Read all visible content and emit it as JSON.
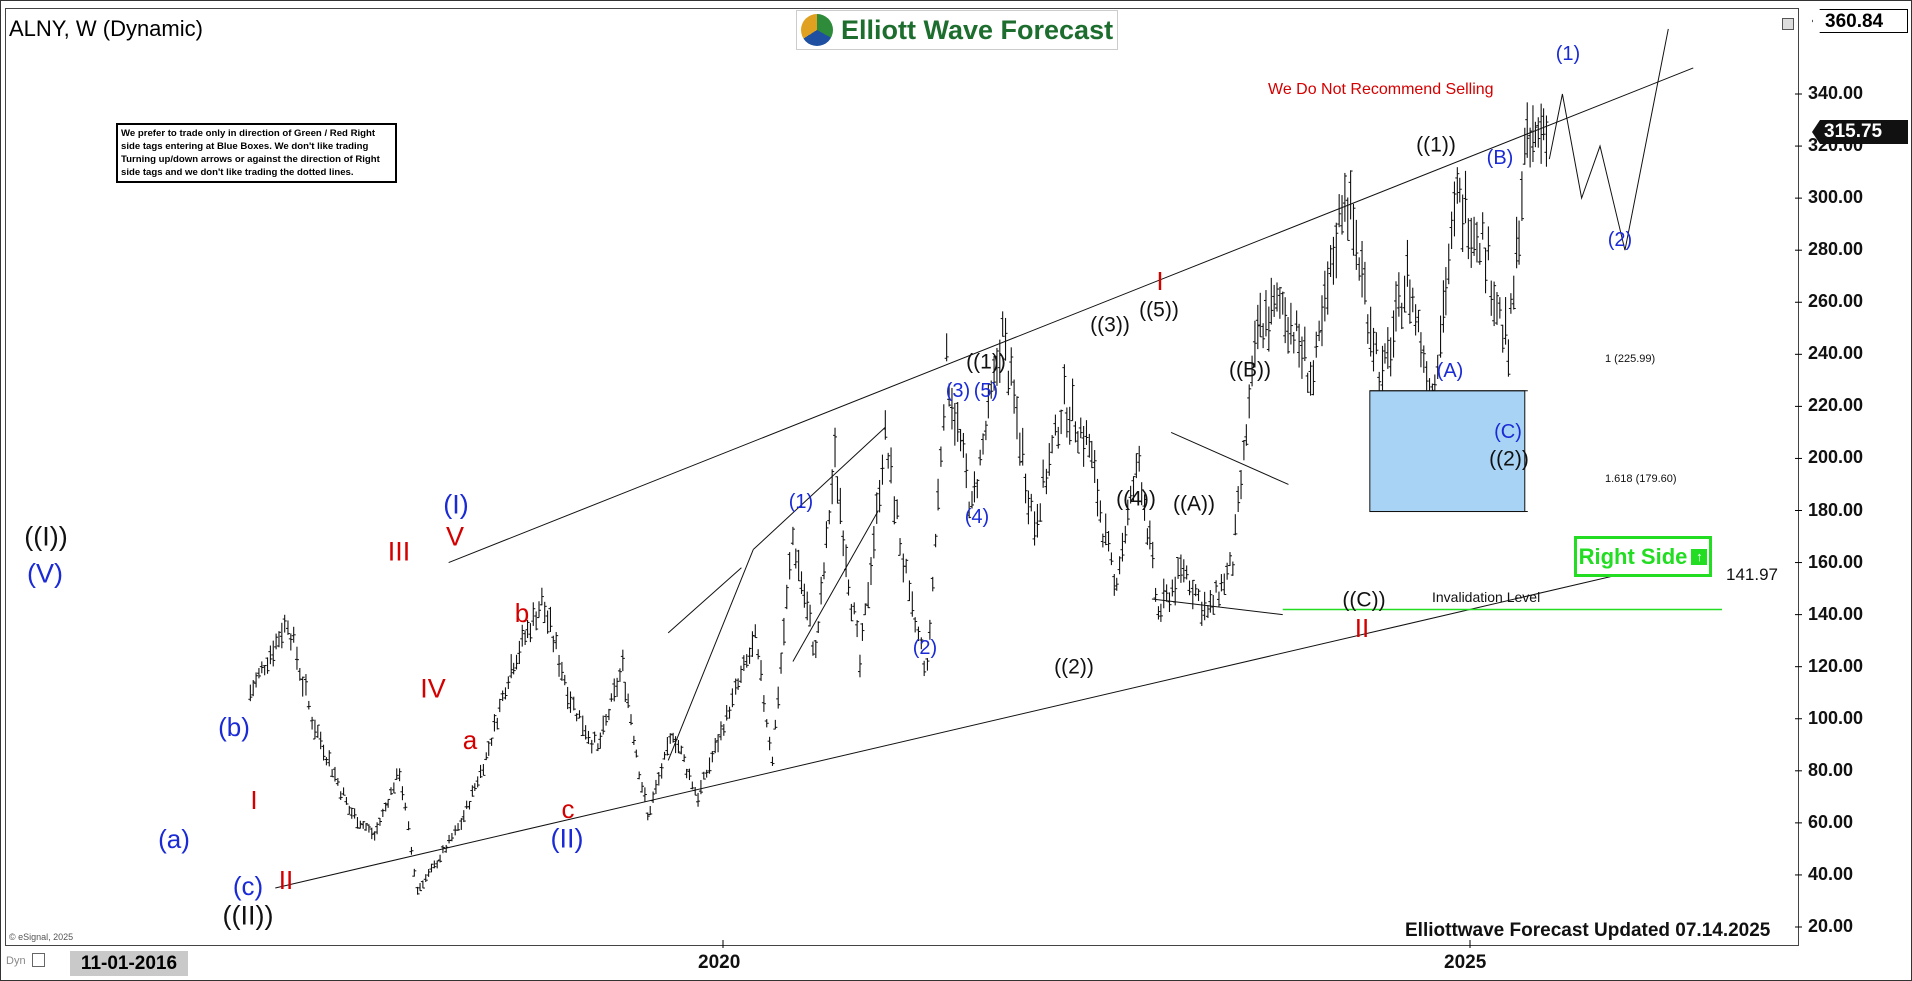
{
  "header": {
    "symbol_title": "ALNY, W (Dynamic)",
    "logo_text": "Elliott Wave Forecast",
    "disclaimer": "We prefer to trade only in direction of Green / Red Right side tags entering at Blue Boxes. We don't like trading Turning up/down arrows or against the direction of Right side tags and we don't like trading the dotted lines.",
    "warning": "We Do Not Recommend Selling"
  },
  "price_axis": {
    "ticks": [
      "340.00",
      "320.00",
      "300.00",
      "280.00",
      "260.00",
      "240.00",
      "220.00",
      "200.00",
      "180.00",
      "160.00",
      "140.00",
      "120.00",
      "100.00",
      "80.00",
      "60.00",
      "40.00",
      "20.00"
    ],
    "high_label": "360.84",
    "last_label": "315.75"
  },
  "time_axis": {
    "start_date": "11-01-2016",
    "ticks": [
      "2020",
      "2025"
    ]
  },
  "footer": {
    "updated": "Elliottwave Forecast Updated 07.14.2025",
    "copyright": "© eSignal, 2025",
    "dyn": "Dyn"
  },
  "right_side_tag": {
    "label": "Right Side",
    "arrow": "up-arrow-icon",
    "color": "#22dd22"
  },
  "invalidation": {
    "label": "Invalidation Level",
    "value": "141.97"
  },
  "blue_box": {
    "fib1": "1 (225.99)",
    "fib2": "1.618 (179.60)",
    "color": "#a9d3f5"
  },
  "wave_labels": {
    "ii_degree": {
      "W_I": "((I))",
      "W_II": "((II))"
    },
    "primary_I": {
      "I": "(I)",
      "II": "(II)"
    },
    "red_counts": {
      "III": "III",
      "IV": "IV",
      "V": "V",
      "I": "I",
      "II": "II",
      "a": "a",
      "b": "b",
      "c": "c",
      "I2": "I",
      "II2": "II"
    },
    "blue_left": {
      "V": "(V)",
      "a": "(a)",
      "b": "(b)",
      "c": "(c)"
    },
    "minute": {
      "w1": "((1))",
      "w2": "((2))",
      "w3": "((3))",
      "w4": "((4))",
      "w5": "((5))",
      "wA": "((A))",
      "wB": "((B))",
      "wC": "((C))",
      "w1b": "((1))",
      "w2b": "((2))"
    },
    "minor": {
      "m1": "(1)",
      "m2": "(2)",
      "m3": "(3)",
      "m4": "(4)",
      "m5": "(5)",
      "mA": "(A)",
      "mB": "(B)",
      "mC": "(C)",
      "m1b": "(1)",
      "m2b": "(2)"
    }
  },
  "colors": {
    "blue": "#1a2bd6",
    "red": "#d40000",
    "black": "#111111",
    "green": "#22dd22"
  },
  "chart_data": {
    "type": "ohlc",
    "title": "ALNY, W (Dynamic)",
    "xlabel": "",
    "ylabel": "",
    "ylim": [
      10,
      365
    ],
    "x_start": "2016-11-01",
    "x_end": "2027-01-01",
    "last_price": 315.75,
    "period_high": 360.84,
    "invalidation_level": 141.97,
    "series": [
      {
        "x": [
          "2016-11-01",
          "2017-02-01",
          "2017-04-01",
          "2017-07-01",
          "2017-09-01",
          "2017-11-01",
          "2017-12-15",
          "2018-02-01",
          "2018-04-01",
          "2018-06-01",
          "2018-08-01",
          "2018-10-15",
          "2019-01-01",
          "2019-03-01",
          "2019-05-01",
          "2019-07-01",
          "2019-09-01",
          "2019-11-01",
          "2020-02-01",
          "2020-03-20",
          "2020-05-01",
          "2020-06-20",
          "2020-08-15",
          "2020-10-01",
          "2020-12-01",
          "2021-02-01",
          "2021-04-01",
          "2021-05-15",
          "2021-07-01",
          "2021-09-01",
          "2021-11-15",
          "2022-02-01",
          "2022-04-15",
          "2022-06-15",
          "2022-08-15",
          "2022-10-15",
          "2022-12-01",
          "2023-02-01",
          "2023-04-01",
          "2023-06-01",
          "2023-08-01",
          "2023-10-01",
          "2023-12-15",
          "2024-03-01",
          "2024-06-01",
          "2024-08-01",
          "2024-10-01",
          "2024-12-01",
          "2025-02-01",
          "2025-04-05",
          "2025-05-15",
          "2025-07-14"
        ],
        "y": [
          110,
          138,
          100,
          65,
          55,
          80,
          34,
          45,
          60,
          85,
          120,
          145,
          105,
          88,
          120,
          62,
          95,
          70,
          110,
          130,
          85,
          170,
          125,
          200,
          120,
          208,
          145,
          118,
          236,
          180,
          248,
          175,
          222,
          205,
          150,
          200,
          140,
          158,
          140,
          160,
          250,
          260,
          230,
          305,
          230,
          270,
          225,
          300,
          285,
          240,
          315,
          332
        ]
      }
    ],
    "projection": {
      "x": [
        "2025-07-14",
        "2025-08-15",
        "2025-10-01",
        "2025-11-15",
        "2026-01-15",
        "2026-05-01"
      ],
      "y": [
        315,
        340,
        300,
        320,
        280,
        365
      ]
    },
    "channel_upper": {
      "x": [
        "2018-03-01",
        "2026-07-01"
      ],
      "y": [
        160,
        350
      ]
    },
    "channel_lower": {
      "x": [
        "2017-01-01",
        "2026-07-01"
      ],
      "y": [
        35,
        162
      ]
    }
  }
}
